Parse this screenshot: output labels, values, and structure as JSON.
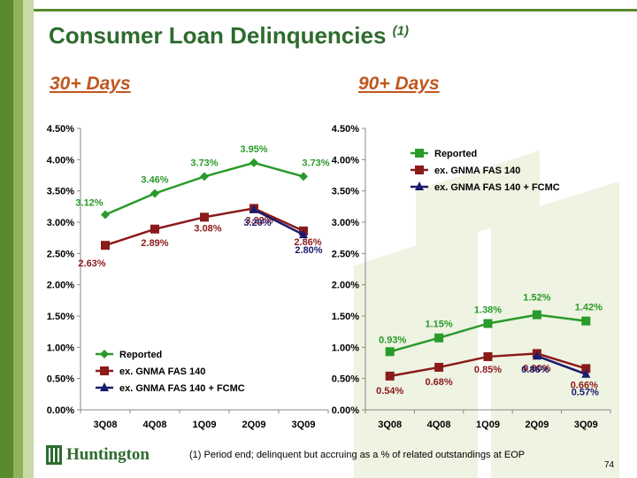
{
  "title": "Consumer Loan Delinquencies",
  "title_note": "(1)",
  "chart_data": [
    {
      "type": "line",
      "heading": "30+ Days",
      "categories": [
        "3Q08",
        "4Q08",
        "1Q09",
        "2Q09",
        "3Q09"
      ],
      "ylim": [
        0,
        0.045
      ],
      "yticks": [
        "0.00%",
        "0.50%",
        "1.00%",
        "1.50%",
        "2.00%",
        "2.50%",
        "3.00%",
        "3.50%",
        "4.00%",
        "4.50%"
      ],
      "legend_position": "bottom-left",
      "series": [
        {
          "name": "Reported",
          "color": "#2a9a2a",
          "marker": "diamond",
          "values": [
            0.0312,
            0.0346,
            0.0373,
            0.0395,
            0.0373
          ],
          "labels": [
            "3.12%",
            "3.46%",
            "3.73%",
            "3.95%",
            "3.73%"
          ]
        },
        {
          "name": "ex. GNMA FAS 140",
          "color": "#8b1a1a",
          "marker": "square",
          "values": [
            0.0263,
            0.0289,
            0.0308,
            0.0322,
            0.0286
          ],
          "labels": [
            "2.63%",
            "2.89%",
            "3.08%",
            "3.22%",
            "2.86%"
          ]
        },
        {
          "name": "ex. GNMA FAS 140 + FCMC",
          "color": "#1a1a6e",
          "marker": "triangle",
          "values": [
            null,
            null,
            null,
            0.032,
            0.028
          ],
          "labels": [
            "",
            "",
            "",
            "3.20%",
            "2.80%"
          ]
        }
      ]
    },
    {
      "type": "line",
      "heading": "90+ Days",
      "categories": [
        "3Q08",
        "4Q08",
        "1Q09",
        "2Q09",
        "3Q09"
      ],
      "ylim": [
        0,
        0.045
      ],
      "yticks": [
        "0.00%",
        "0.50%",
        "1.00%",
        "1.50%",
        "2.00%",
        "2.50%",
        "3.00%",
        "3.50%",
        "4.00%",
        "4.50%"
      ],
      "legend_position": "top-left",
      "series": [
        {
          "name": "Reported",
          "color": "#2a9a2a",
          "marker": "square",
          "values": [
            0.0093,
            0.0115,
            0.0138,
            0.0152,
            0.0142
          ],
          "labels": [
            "0.93%",
            "1.15%",
            "1.38%",
            "1.52%",
            "1.42%"
          ]
        },
        {
          "name": "ex. GNMA FAS 140",
          "color": "#8b1a1a",
          "marker": "square",
          "values": [
            0.0054,
            0.0068,
            0.0085,
            0.009,
            0.0066
          ],
          "labels": [
            "0.54%",
            "0.68%",
            "0.85%",
            "0.90%",
            "0.66%"
          ]
        },
        {
          "name": "ex. GNMA FAS 140 + FCMC",
          "color": "#1a1a6e",
          "marker": "triangle",
          "values": [
            null,
            null,
            null,
            0.0086,
            0.0057
          ],
          "labels": [
            "",
            "",
            "",
            "0.86%",
            "0.57%"
          ]
        }
      ]
    }
  ],
  "footnote": "(1) Period end; delinquent but accruing as a % of related outstandings at EOP",
  "logo": {
    "text": "Huntington",
    "icon": "huntington-logo-icon"
  },
  "page_number": "74",
  "colors": {
    "brand_green": "#2e6b2e",
    "heading_orange": "#c0571e",
    "sidebar_dark": "#5a8a2e",
    "sidebar_mid": "#8fb35a",
    "sidebar_light": "#c9d9a8"
  }
}
